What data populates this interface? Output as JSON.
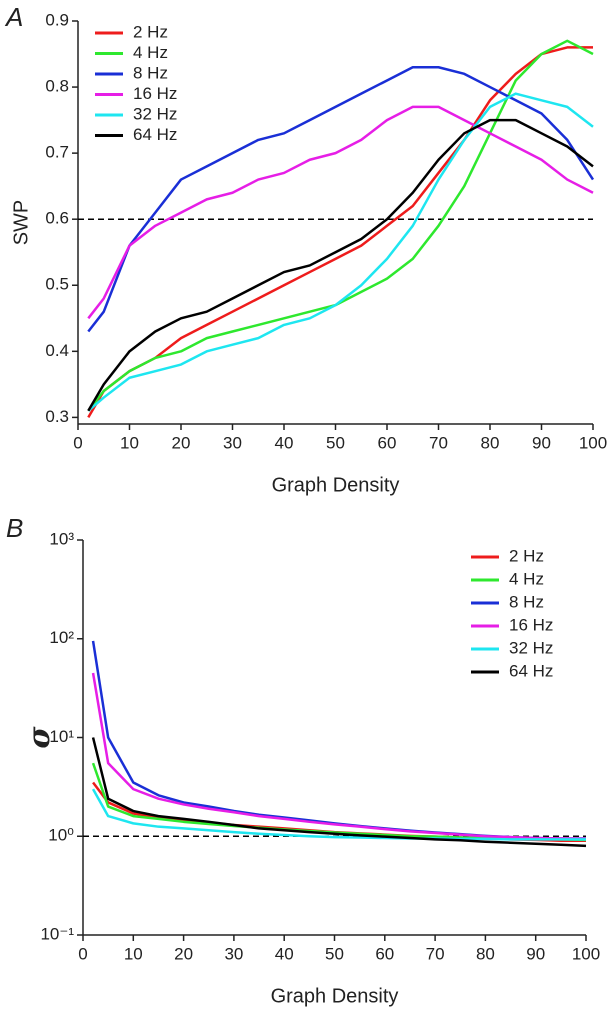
{
  "chart_data": [
    {
      "type": "line",
      "panel_label": "A",
      "xlabel": "Graph Density",
      "ylabel": "SWP",
      "x": [
        2,
        5,
        10,
        15,
        20,
        25,
        30,
        35,
        40,
        45,
        50,
        55,
        60,
        65,
        70,
        75,
        80,
        85,
        90,
        95,
        100
      ],
      "xlim": [
        0,
        100
      ],
      "xticks": [
        0,
        10,
        20,
        30,
        40,
        50,
        60,
        70,
        80,
        90,
        100
      ],
      "ylim": [
        0.29,
        0.9
      ],
      "yticks": [
        0.3,
        0.4,
        0.5,
        0.6,
        0.7,
        0.8,
        0.9
      ],
      "hline": 0.6,
      "legend": "upper left",
      "series": [
        {
          "name": "2 Hz",
          "color": "#ee1c1c",
          "values": [
            0.3,
            0.34,
            0.37,
            0.39,
            0.42,
            0.44,
            0.46,
            0.48,
            0.5,
            0.52,
            0.54,
            0.56,
            0.59,
            0.62,
            0.67,
            0.72,
            0.78,
            0.82,
            0.85,
            0.86,
            0.86
          ]
        },
        {
          "name": "4 Hz",
          "color": "#2ee82e",
          "values": [
            0.31,
            0.34,
            0.37,
            0.39,
            0.4,
            0.42,
            0.43,
            0.44,
            0.45,
            0.46,
            0.47,
            0.49,
            0.51,
            0.54,
            0.59,
            0.65,
            0.73,
            0.81,
            0.85,
            0.87,
            0.85
          ]
        },
        {
          "name": "8 Hz",
          "color": "#1a2fd6",
          "values": [
            0.43,
            0.46,
            0.56,
            0.61,
            0.66,
            0.68,
            0.7,
            0.72,
            0.73,
            0.75,
            0.77,
            0.79,
            0.81,
            0.83,
            0.83,
            0.82,
            0.8,
            0.78,
            0.76,
            0.72,
            0.66
          ]
        },
        {
          "name": "16 Hz",
          "color": "#e61ee6",
          "values": [
            0.45,
            0.48,
            0.56,
            0.59,
            0.61,
            0.63,
            0.64,
            0.66,
            0.67,
            0.69,
            0.7,
            0.72,
            0.75,
            0.77,
            0.77,
            0.75,
            0.73,
            0.71,
            0.69,
            0.66,
            0.64
          ]
        },
        {
          "name": "32 Hz",
          "color": "#1ee6f0",
          "values": [
            0.31,
            0.33,
            0.36,
            0.37,
            0.38,
            0.4,
            0.41,
            0.42,
            0.44,
            0.45,
            0.47,
            0.5,
            0.54,
            0.59,
            0.66,
            0.72,
            0.77,
            0.79,
            0.78,
            0.77,
            0.74
          ]
        },
        {
          "name": "64 Hz",
          "color": "#000000",
          "values": [
            0.31,
            0.35,
            0.4,
            0.43,
            0.45,
            0.46,
            0.48,
            0.5,
            0.52,
            0.53,
            0.55,
            0.57,
            0.6,
            0.64,
            0.69,
            0.73,
            0.75,
            0.75,
            0.73,
            0.71,
            0.68
          ]
        }
      ]
    },
    {
      "type": "line",
      "panel_label": "B",
      "xlabel": "Graph Density",
      "ylabel": "σ",
      "x": [
        2,
        5,
        10,
        15,
        20,
        25,
        30,
        35,
        40,
        45,
        50,
        55,
        60,
        65,
        70,
        75,
        80,
        85,
        90,
        95,
        100
      ],
      "xlim": [
        0,
        100
      ],
      "xticks": [
        0,
        10,
        20,
        30,
        40,
        50,
        60,
        70,
        80,
        90,
        100
      ],
      "yscale": "log",
      "ylim": [
        0.1,
        1000
      ],
      "yticks": [
        {
          "value": 0.1,
          "label": "10⁻¹"
        },
        {
          "value": 1,
          "label": "10⁰"
        },
        {
          "value": 10,
          "label": "10¹"
        },
        {
          "value": 100,
          "label": "10²"
        },
        {
          "value": 1000,
          "label": "10³"
        }
      ],
      "hline": 1,
      "legend": "upper right",
      "series": [
        {
          "name": "2 Hz",
          "color": "#ee1c1c",
          "values": [
            3.5,
            2.2,
            1.7,
            1.55,
            1.45,
            1.38,
            1.3,
            1.25,
            1.2,
            1.15,
            1.1,
            1.07,
            1.04,
            1.01,
            0.99,
            0.97,
            0.95,
            0.93,
            0.92,
            0.9,
            0.9
          ]
        },
        {
          "name": "4 Hz",
          "color": "#2ee82e",
          "values": [
            5.5,
            2.0,
            1.6,
            1.5,
            1.4,
            1.33,
            1.27,
            1.22,
            1.17,
            1.13,
            1.09,
            1.06,
            1.03,
            1.0,
            0.99,
            0.97,
            0.96,
            0.95,
            0.94,
            0.93,
            0.92
          ]
        },
        {
          "name": "8 Hz",
          "color": "#1a2fd6",
          "values": [
            95,
            10,
            3.5,
            2.6,
            2.2,
            2.0,
            1.8,
            1.65,
            1.55,
            1.45,
            1.35,
            1.27,
            1.2,
            1.14,
            1.09,
            1.05,
            1.01,
            0.98,
            0.96,
            0.95,
            0.95
          ]
        },
        {
          "name": "16 Hz",
          "color": "#e61ee6",
          "values": [
            45,
            5.5,
            3.0,
            2.4,
            2.1,
            1.9,
            1.75,
            1.6,
            1.5,
            1.4,
            1.32,
            1.25,
            1.18,
            1.12,
            1.08,
            1.04,
            1.0,
            0.98,
            0.96,
            0.95,
            0.94
          ]
        },
        {
          "name": "32 Hz",
          "color": "#1ee6f0",
          "values": [
            3.0,
            1.6,
            1.35,
            1.25,
            1.2,
            1.15,
            1.1,
            1.06,
            1.03,
            1.0,
            0.98,
            0.97,
            0.96,
            0.95,
            0.95,
            0.94,
            0.94,
            0.93,
            0.93,
            0.93,
            0.93
          ]
        },
        {
          "name": "64 Hz",
          "color": "#000000",
          "values": [
            10,
            2.4,
            1.8,
            1.6,
            1.5,
            1.4,
            1.3,
            1.2,
            1.15,
            1.1,
            1.06,
            1.02,
            0.99,
            0.96,
            0.93,
            0.91,
            0.88,
            0.86,
            0.84,
            0.82,
            0.8
          ]
        }
      ]
    }
  ]
}
